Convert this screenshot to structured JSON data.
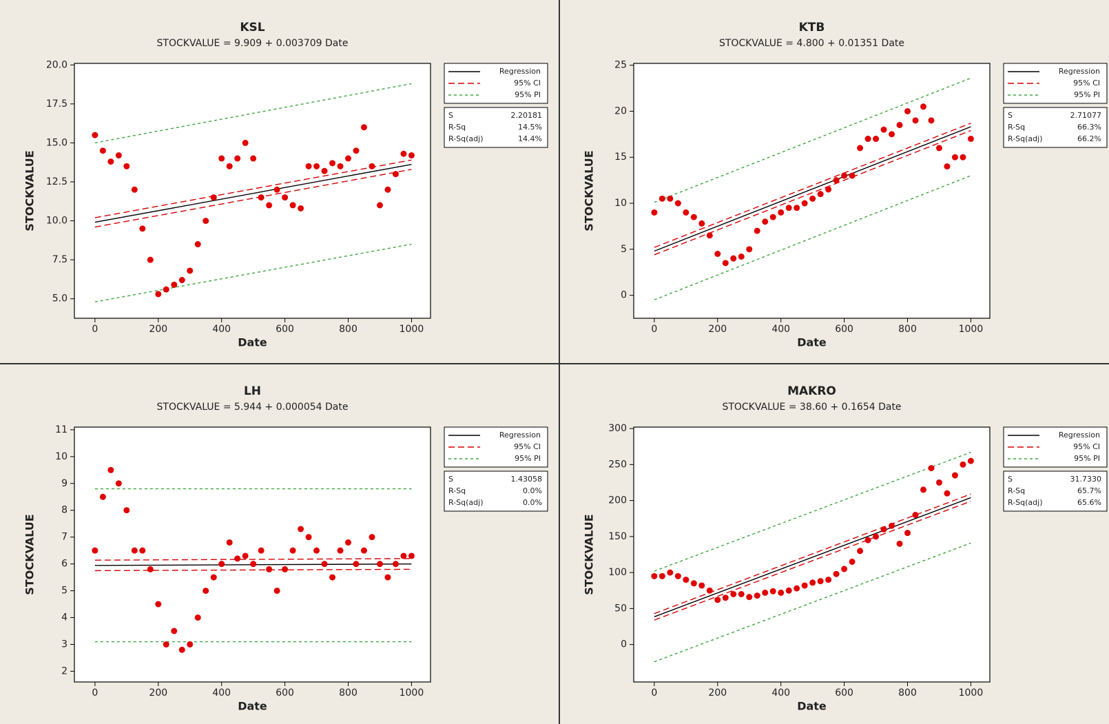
{
  "chart_data": [
    {
      "type": "scatter",
      "title": "KSL",
      "subtitle": "STOCKVALUE = 9.909 + 0.003709 Date",
      "xlabel": "Date",
      "ylabel": "STOCKVALUE",
      "xlim": [
        -65,
        1060
      ],
      "ylim": [
        3.75,
        20.1
      ],
      "xticks": [
        0,
        200,
        400,
        600,
        800,
        1000
      ],
      "yticks": [
        {
          "value": 5,
          "label": "5.0"
        },
        7.5,
        {
          "value": 10,
          "label": "10.0"
        },
        12.5,
        {
          "value": 15,
          "label": "15.0"
        },
        17.5,
        {
          "value": 20,
          "label": "20.0"
        }
      ],
      "points": {
        "color": "#e00000",
        "x": [
          0,
          25,
          50,
          75,
          100,
          125,
          150,
          175,
          200,
          225,
          250,
          275,
          300,
          325,
          350,
          375,
          400,
          425,
          450,
          475,
          500,
          525,
          550,
          575,
          600,
          625,
          650,
          675,
          700,
          725,
          750,
          775,
          800,
          825,
          850,
          875,
          900,
          925,
          950,
          975,
          1000
        ],
        "values": [
          15.5,
          14.5,
          13.8,
          14.2,
          13.5,
          12,
          9.5,
          7.5,
          5.3,
          5.6,
          5.9,
          6.2,
          6.8,
          8.5,
          10,
          11.5,
          14,
          13.5,
          14,
          15,
          14,
          11.5,
          11,
          12,
          11.5,
          11,
          10.8,
          13.5,
          13.5,
          13.2,
          13.7,
          13.5,
          14,
          14.5,
          16,
          13.5,
          11,
          12,
          13,
          14.3,
          14.2
        ]
      },
      "series": [
        {
          "name": "Regression",
          "color": "#000000",
          "dash": "none",
          "x": [
            0,
            1000
          ],
          "values": [
            9.909,
            13.618
          ]
        },
        {
          "name": "95% CI",
          "color": "#d40000",
          "dash": "9 5",
          "x": [
            0,
            1000
          ],
          "upper": [
            10.2,
            13.9
          ],
          "lower": [
            9.6,
            13.3
          ]
        },
        {
          "name": "95% PI",
          "color": "#3aa63a",
          "dash": "4 4",
          "x": [
            0,
            1000
          ],
          "upper": [
            15.0,
            18.8
          ],
          "lower": [
            4.8,
            8.5
          ]
        }
      ],
      "stats": [
        {
          "label": "S",
          "value": "2.20181"
        },
        {
          "label": "R-Sq",
          "value": "14.5%"
        },
        {
          "label": "R-Sq(adj)",
          "value": "14.4%"
        }
      ]
    },
    {
      "type": "scatter",
      "title": "KTB",
      "subtitle": "STOCKVALUE = 4.800 + 0.01351 Date",
      "xlabel": "Date",
      "ylabel": "STOCKVALUE",
      "xlim": [
        -65,
        1060
      ],
      "ylim": [
        -2.5,
        25.2
      ],
      "xticks": [
        0,
        200,
        400,
        600,
        800,
        1000
      ],
      "yticks": [
        0,
        5,
        10,
        15,
        20,
        25
      ],
      "points": {
        "color": "#e00000",
        "x": [
          0,
          25,
          50,
          75,
          100,
          125,
          150,
          175,
          200,
          225,
          250,
          275,
          300,
          325,
          350,
          375,
          400,
          425,
          450,
          475,
          500,
          525,
          550,
          575,
          600,
          625,
          650,
          675,
          700,
          725,
          750,
          775,
          800,
          825,
          850,
          875,
          900,
          925,
          950,
          975,
          1000
        ],
        "values": [
          9,
          10.5,
          10.5,
          10,
          9,
          8.5,
          7.8,
          6.5,
          4.5,
          3.5,
          4,
          4.2,
          5,
          7,
          8,
          8.5,
          9,
          9.5,
          9.5,
          10,
          10.5,
          11,
          11.5,
          12.5,
          13,
          13,
          16,
          17,
          17,
          18,
          17.5,
          18.5,
          20,
          19,
          20.5,
          19,
          16,
          14,
          15,
          15,
          17
        ]
      },
      "series": [
        {
          "name": "Regression",
          "color": "#000000",
          "dash": "none",
          "x": [
            0,
            1000
          ],
          "values": [
            4.8,
            18.31
          ]
        },
        {
          "name": "95% CI",
          "color": "#d40000",
          "dash": "9 5",
          "x": [
            0,
            1000
          ],
          "upper": [
            5.2,
            18.7
          ],
          "lower": [
            4.4,
            17.9
          ]
        },
        {
          "name": "95% PI",
          "color": "#3aa63a",
          "dash": "4 4",
          "x": [
            0,
            1000
          ],
          "upper": [
            10.1,
            23.6
          ],
          "lower": [
            -0.5,
            13.0
          ]
        }
      ],
      "stats": [
        {
          "label": "S",
          "value": "2.71077"
        },
        {
          "label": "R-Sq",
          "value": "66.3%"
        },
        {
          "label": "R-Sq(adj)",
          "value": "66.2%"
        }
      ]
    },
    {
      "type": "scatter",
      "title": "LH",
      "subtitle": "STOCKVALUE = 5.944 + 0.000054 Date",
      "xlabel": "Date",
      "ylabel": "STOCKVALUE",
      "xlim": [
        -65,
        1060
      ],
      "ylim": [
        1.6,
        11.1
      ],
      "xticks": [
        0,
        200,
        400,
        600,
        800,
        1000
      ],
      "yticks": [
        2,
        3,
        4,
        5,
        6,
        7,
        8,
        9,
        10,
        11
      ],
      "points": {
        "color": "#e00000",
        "x": [
          0,
          25,
          50,
          75,
          100,
          125,
          150,
          175,
          200,
          225,
          250,
          275,
          300,
          325,
          350,
          375,
          400,
          425,
          450,
          475,
          500,
          525,
          550,
          575,
          600,
          625,
          650,
          675,
          700,
          725,
          750,
          775,
          800,
          825,
          850,
          875,
          900,
          925,
          950,
          975,
          1000
        ],
        "values": [
          6.5,
          8.5,
          9.5,
          9,
          8,
          6.5,
          6.5,
          5.8,
          4.5,
          3,
          3.5,
          2.8,
          3,
          4,
          5,
          5.5,
          6,
          6.8,
          6.2,
          6.3,
          6,
          6.5,
          5.8,
          5,
          5.8,
          6.5,
          7.3,
          7,
          6.5,
          6,
          5.5,
          6.5,
          6.8,
          6,
          6.5,
          7,
          6,
          5.5,
          6,
          6.3,
          6.3
        ]
      },
      "series": [
        {
          "name": "Regression",
          "color": "#000000",
          "dash": "none",
          "x": [
            0,
            1000
          ],
          "values": [
            5.944,
            5.998
          ]
        },
        {
          "name": "95% CI",
          "color": "#d40000",
          "dash": "9 5",
          "x": [
            0,
            1000
          ],
          "upper": [
            6.14,
            6.2
          ],
          "lower": [
            5.75,
            5.8
          ]
        },
        {
          "name": "95% PI",
          "color": "#3aa63a",
          "dash": "4 4",
          "x": [
            0,
            1000
          ],
          "upper": [
            8.8,
            8.8
          ],
          "lower": [
            3.1,
            3.1
          ]
        }
      ],
      "stats": [
        {
          "label": "S",
          "value": "1.43058"
        },
        {
          "label": "R-Sq",
          "value": "0.0%"
        },
        {
          "label": "R-Sq(adj)",
          "value": "0.0%"
        }
      ]
    },
    {
      "type": "scatter",
      "title": "MAKRO",
      "subtitle": "STOCKVALUE = 38.60 + 0.1654 Date",
      "xlabel": "Date",
      "ylabel": "STOCKVALUE",
      "xlim": [
        -65,
        1060
      ],
      "ylim": [
        -52,
        302
      ],
      "xticks": [
        0,
        200,
        400,
        600,
        800,
        1000
      ],
      "yticks": [
        0,
        50,
        100,
        150,
        200,
        250,
        300
      ],
      "points": {
        "color": "#e00000",
        "x": [
          0,
          25,
          50,
          75,
          100,
          125,
          150,
          175,
          200,
          225,
          250,
          275,
          300,
          325,
          350,
          375,
          400,
          425,
          450,
          475,
          500,
          525,
          550,
          575,
          600,
          625,
          650,
          675,
          700,
          725,
          750,
          775,
          800,
          825,
          850,
          875,
          900,
          925,
          950,
          975,
          1000
        ],
        "values": [
          95,
          95,
          100,
          95,
          90,
          85,
          82,
          75,
          62,
          65,
          70,
          70,
          66,
          68,
          72,
          74,
          72,
          75,
          78,
          82,
          86,
          88,
          90,
          98,
          105,
          115,
          130,
          145,
          150,
          160,
          165,
          140,
          155,
          180,
          215,
          245,
          225,
          210,
          235,
          250,
          255
        ]
      },
      "series": [
        {
          "name": "Regression",
          "color": "#000000",
          "dash": "none",
          "x": [
            0,
            1000
          ],
          "values": [
            38.6,
            204.0
          ]
        },
        {
          "name": "95% CI",
          "color": "#d40000",
          "dash": "9 5",
          "x": [
            0,
            1000
          ],
          "upper": [
            43,
            209
          ],
          "lower": [
            34,
            199
          ]
        },
        {
          "name": "95% PI",
          "color": "#3aa63a",
          "dash": "4 4",
          "x": [
            0,
            1000
          ],
          "upper": [
            102,
            267
          ],
          "lower": [
            -24,
            141
          ]
        }
      ],
      "stats": [
        {
          "label": "S",
          "value": "31.7330"
        },
        {
          "label": "R-Sq",
          "value": "65.7%"
        },
        {
          "label": "R-Sq(adj)",
          "value": "65.6%"
        }
      ]
    }
  ]
}
